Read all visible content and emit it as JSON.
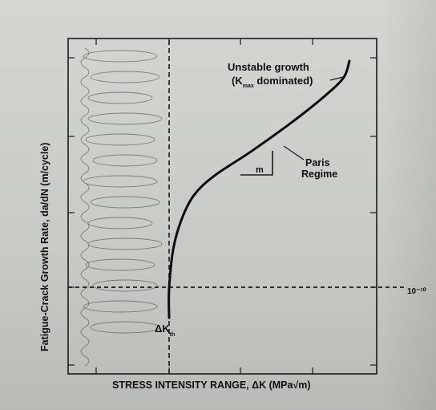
{
  "chart_data": {
    "type": "line",
    "title": "",
    "xlabel": "STRESS INTENSITY RANGE, ΔK (MPa√m)",
    "ylabel": "Fatigue-Crack Growth Rate, da/dN (m/cycle)",
    "x_scale": "log",
    "y_scale": "log",
    "x_tick_labels": [],
    "y_tick_labels": [
      "10⁻¹⁰"
    ],
    "grid": false,
    "legend": "none",
    "series": [
      {
        "values_schematic": [
          [
            0.0,
            0.0
          ],
          [
            0.0,
            0.12
          ],
          [
            0.02,
            0.28
          ],
          [
            0.06,
            0.4
          ],
          [
            0.12,
            0.5
          ],
          [
            0.22,
            0.58
          ],
          [
            0.4,
            0.68
          ],
          [
            0.6,
            0.8
          ],
          [
            0.75,
            0.9
          ],
          [
            0.85,
            0.98
          ],
          [
            0.88,
            1.05
          ]
        ]
      }
    ],
    "threshold_line": {
      "y_label": "10⁻¹⁰"
    },
    "annotations": {
      "unstable_line1": "Unstable growth",
      "unstable_line2_prefix": "(K",
      "unstable_sub": "max",
      "unstable_line2_suffix": " dominated)",
      "paris_line1": "Paris",
      "paris_line2": "Regime",
      "slope_label": "m",
      "threshold_label": "ΔK",
      "threshold_sub": "th"
    },
    "colors": {
      "curve": "#0d0d0d",
      "axes": "#1a1a1a",
      "paper": "#cfd0cc"
    }
  }
}
